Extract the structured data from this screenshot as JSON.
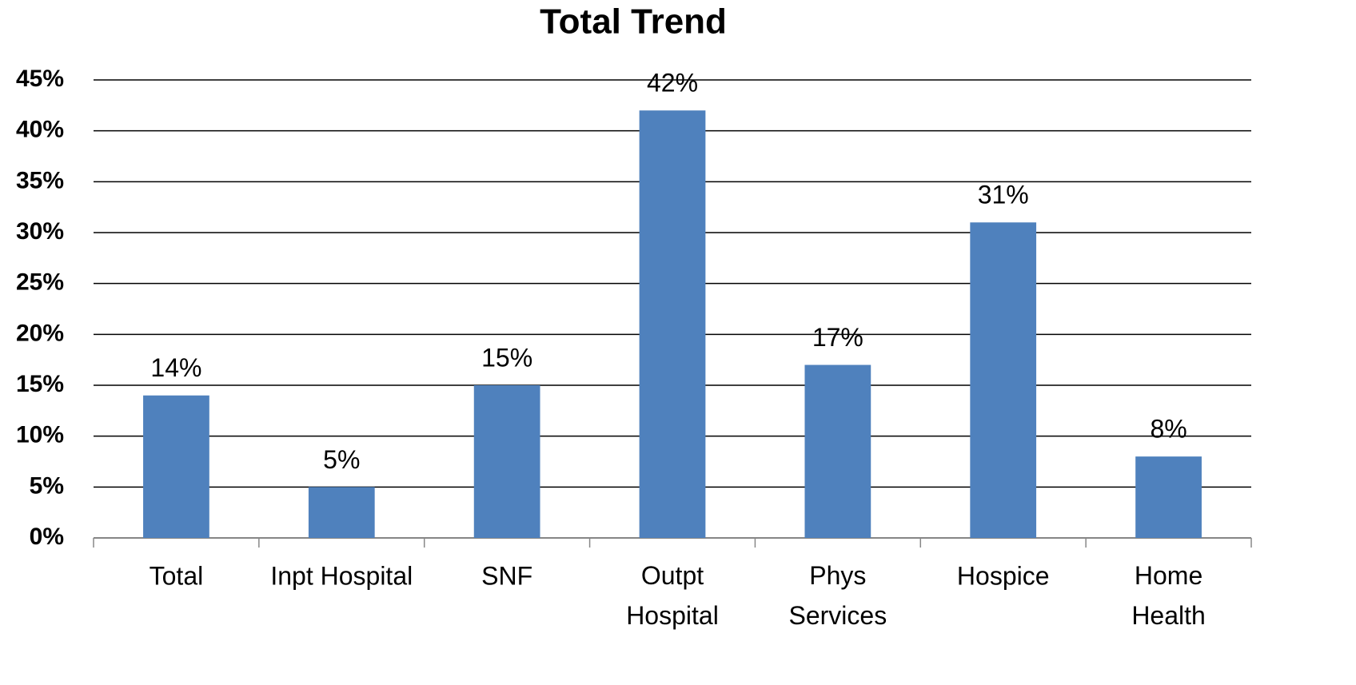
{
  "chart_data": {
    "type": "bar",
    "title": "Total Trend",
    "categories": [
      "Total",
      "Inpt Hospital",
      "SNF",
      "Outpt\nHospital",
      "Phys\nServices",
      "Hospice",
      "Home\nHealth"
    ],
    "values": [
      14,
      5,
      15,
      42,
      17,
      31,
      8
    ],
    "value_labels": [
      "14%",
      "5%",
      "15%",
      "42%",
      "17%",
      "31%",
      "8%"
    ],
    "color": "#4f81bd",
    "ylim": [
      0,
      45
    ],
    "yticks": [
      {
        "value": 0,
        "label": "0%"
      },
      {
        "value": 5,
        "label": "5%"
      },
      {
        "value": 10,
        "label": "10%"
      },
      {
        "value": 15,
        "label": "15%"
      },
      {
        "value": 20,
        "label": "20%"
      },
      {
        "value": 25,
        "label": "25%"
      },
      {
        "value": 30,
        "label": "30%"
      },
      {
        "value": 35,
        "label": "35%"
      },
      {
        "value": 40,
        "label": "40%"
      },
      {
        "value": 45,
        "label": "45%"
      }
    ],
    "grid": true
  }
}
